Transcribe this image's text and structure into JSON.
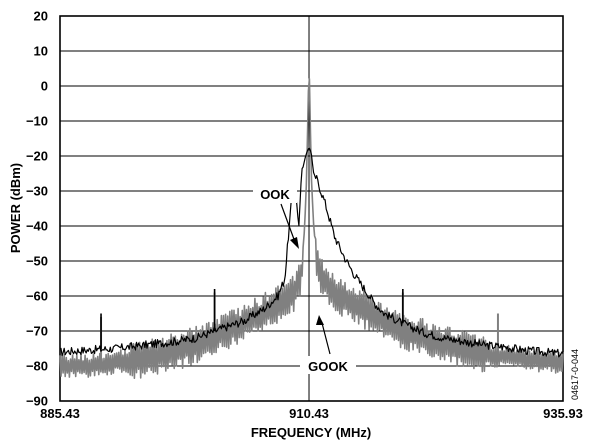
{
  "chart_data": {
    "type": "line",
    "xlabel": "FREQUENCY (MHz)",
    "ylabel": "POWER (dBm)",
    "xlim": [
      885.43,
      935.93
    ],
    "ylim": [
      -90,
      20
    ],
    "x_ticks": [
      "885.43",
      "910.43",
      "935.93"
    ],
    "y_ticks": [
      "20",
      "10",
      "0",
      "−10",
      "−20",
      "−30",
      "−40",
      "−50",
      "−60",
      "−70",
      "−80",
      "−90"
    ],
    "grid": "horizontal",
    "center_frequency": 910.43,
    "series": [
      {
        "name": "OOK",
        "color": "#000000",
        "points": [
          [
            885.43,
            -76
          ],
          [
            888,
            -75.5
          ],
          [
            891,
            -75
          ],
          [
            894,
            -74
          ],
          [
            897,
            -73
          ],
          [
            899,
            -72
          ],
          [
            900,
            -71
          ],
          [
            902,
            -69
          ],
          [
            904,
            -67
          ],
          [
            906,
            -63.5
          ],
          [
            907.3,
            -60
          ],
          [
            908,
            -55
          ],
          [
            908.3,
            -45
          ],
          [
            908.7,
            -32
          ],
          [
            909.1,
            -31
          ],
          [
            909.4,
            -40
          ],
          [
            909.7,
            -25
          ],
          [
            910.0,
            -21
          ],
          [
            910.2,
            -19
          ],
          [
            910.43,
            -17.5
          ],
          [
            910.65,
            -19
          ],
          [
            910.9,
            -25
          ],
          [
            911.2,
            -26.5
          ],
          [
            911.5,
            -29
          ],
          [
            912,
            -33
          ],
          [
            912.5,
            -38
          ],
          [
            913,
            -43
          ],
          [
            914,
            -49
          ],
          [
            915,
            -54
          ],
          [
            916,
            -58
          ],
          [
            917,
            -62
          ],
          [
            918,
            -65
          ],
          [
            920,
            -68
          ],
          [
            922,
            -70.5
          ],
          [
            924,
            -72
          ],
          [
            926,
            -73
          ],
          [
            928,
            -74
          ],
          [
            930,
            -74.5
          ],
          [
            932,
            -75.5
          ],
          [
            935.93,
            -76.5
          ]
        ],
        "spurs": [
          {
            "x": 889.55,
            "y": -65
          },
          {
            "x": 900.95,
            "y": -58
          },
          {
            "x": 919.85,
            "y": -58
          }
        ]
      },
      {
        "name": "GOOK",
        "color": "#808080",
        "points": [
          [
            885.43,
            -80
          ],
          [
            888,
            -80
          ],
          [
            891,
            -79
          ],
          [
            894,
            -78
          ],
          [
            897,
            -76
          ],
          [
            900,
            -73
          ],
          [
            903,
            -69
          ],
          [
            905,
            -66
          ],
          [
            907,
            -63
          ],
          [
            908,
            -61
          ],
          [
            909,
            -59
          ],
          [
            909.6,
            -55
          ],
          [
            910.0,
            -40
          ],
          [
            910.2,
            -25
          ],
          [
            910.43,
            8
          ],
          [
            910.65,
            -25
          ],
          [
            910.9,
            -40
          ],
          [
            911.3,
            -52
          ],
          [
            912,
            -56
          ],
          [
            913,
            -59
          ],
          [
            914,
            -61
          ],
          [
            916,
            -64
          ],
          [
            918,
            -67
          ],
          [
            920,
            -70
          ],
          [
            922,
            -72
          ],
          [
            924,
            -74
          ],
          [
            926,
            -75
          ],
          [
            929,
            -77
          ],
          [
            932,
            -78
          ],
          [
            935.93,
            -79
          ]
        ],
        "spurs": [
          {
            "x": 889.55,
            "y": -66
          },
          {
            "x": 900.95,
            "y": -59
          },
          {
            "x": 919.85,
            "y": -59
          },
          {
            "x": 929.4,
            "y": -65
          }
        ]
      }
    ],
    "annotations": [
      "OOK",
      "GOOK"
    ],
    "figure_id": "04617-0-044"
  }
}
